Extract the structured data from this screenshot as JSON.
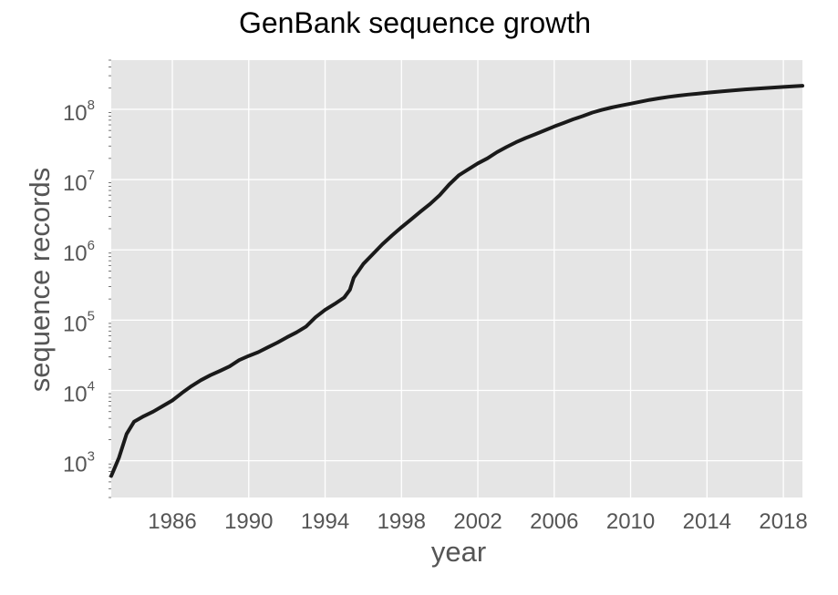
{
  "chart_data": {
    "type": "line",
    "title": "GenBank sequence growth",
    "xlabel": "year",
    "ylabel": "sequence records",
    "xlim": [
      1982.8,
      2019.0
    ],
    "ylim": [
      300,
      500000000
    ],
    "yscale": "log",
    "grid": true,
    "xticks": [
      1986,
      1990,
      1994,
      1998,
      2002,
      2006,
      2010,
      2014,
      2018
    ],
    "yticks": [
      {
        "value": 1000,
        "base": "10",
        "exp": "3"
      },
      {
        "value": 10000,
        "base": "10",
        "exp": "4"
      },
      {
        "value": 100000,
        "base": "10",
        "exp": "5"
      },
      {
        "value": 1000000,
        "base": "10",
        "exp": "6"
      },
      {
        "value": 10000000,
        "base": "10",
        "exp": "7"
      },
      {
        "value": 100000000,
        "base": "10",
        "exp": "8"
      }
    ],
    "series": [
      {
        "color": "#1a1a1a",
        "x": [
          1982.8,
          1983.2,
          1983.6,
          1984.0,
          1984.5,
          1985.0,
          1985.5,
          1986.0,
          1986.5,
          1987.0,
          1987.5,
          1988.0,
          1988.5,
          1989.0,
          1989.5,
          1990.0,
          1990.5,
          1991.0,
          1991.5,
          1992.0,
          1992.5,
          1993.0,
          1993.5,
          1994.0,
          1994.5,
          1995.0,
          1995.3,
          1995.5,
          1996.0,
          1996.5,
          1997.0,
          1997.5,
          1998.0,
          1998.5,
          1999.0,
          1999.5,
          2000.0,
          2000.5,
          2001.0,
          2001.5,
          2002.0,
          2002.5,
          2003.0,
          2003.5,
          2004.0,
          2004.5,
          2005.0,
          2005.5,
          2006.0,
          2006.5,
          2007.0,
          2007.5,
          2008.0,
          2008.5,
          2009.0,
          2009.5,
          2010.0,
          2010.5,
          2011.0,
          2011.5,
          2012.0,
          2012.5,
          2013.0,
          2014.0,
          2015.0,
          2016.0,
          2017.0,
          2018.0,
          2019.0
        ],
        "values": [
          606,
          1100,
          2400,
          3600,
          4300,
          5000,
          6000,
          7200,
          9200,
          11500,
          14000,
          16500,
          19000,
          22000,
          27000,
          31000,
          35000,
          41000,
          48000,
          57000,
          67000,
          81000,
          110000,
          140000,
          170000,
          210000,
          270000,
          400000,
          630000,
          870000,
          1200000,
          1600000,
          2100000,
          2700000,
          3500000,
          4500000,
          6000000,
          8500000,
          11500000,
          14000000,
          17000000,
          20000000,
          24500000,
          29000000,
          34000000,
          39000000,
          44000000,
          50000000,
          57000000,
          64000000,
          72000000,
          80000000,
          90000000,
          98000000,
          106000000,
          113000000,
          120000000,
          128000000,
          136000000,
          143000000,
          150000000,
          156000000,
          162000000,
          172000000,
          182000000,
          192000000,
          200000000,
          208000000,
          216000000
        ]
      }
    ]
  }
}
